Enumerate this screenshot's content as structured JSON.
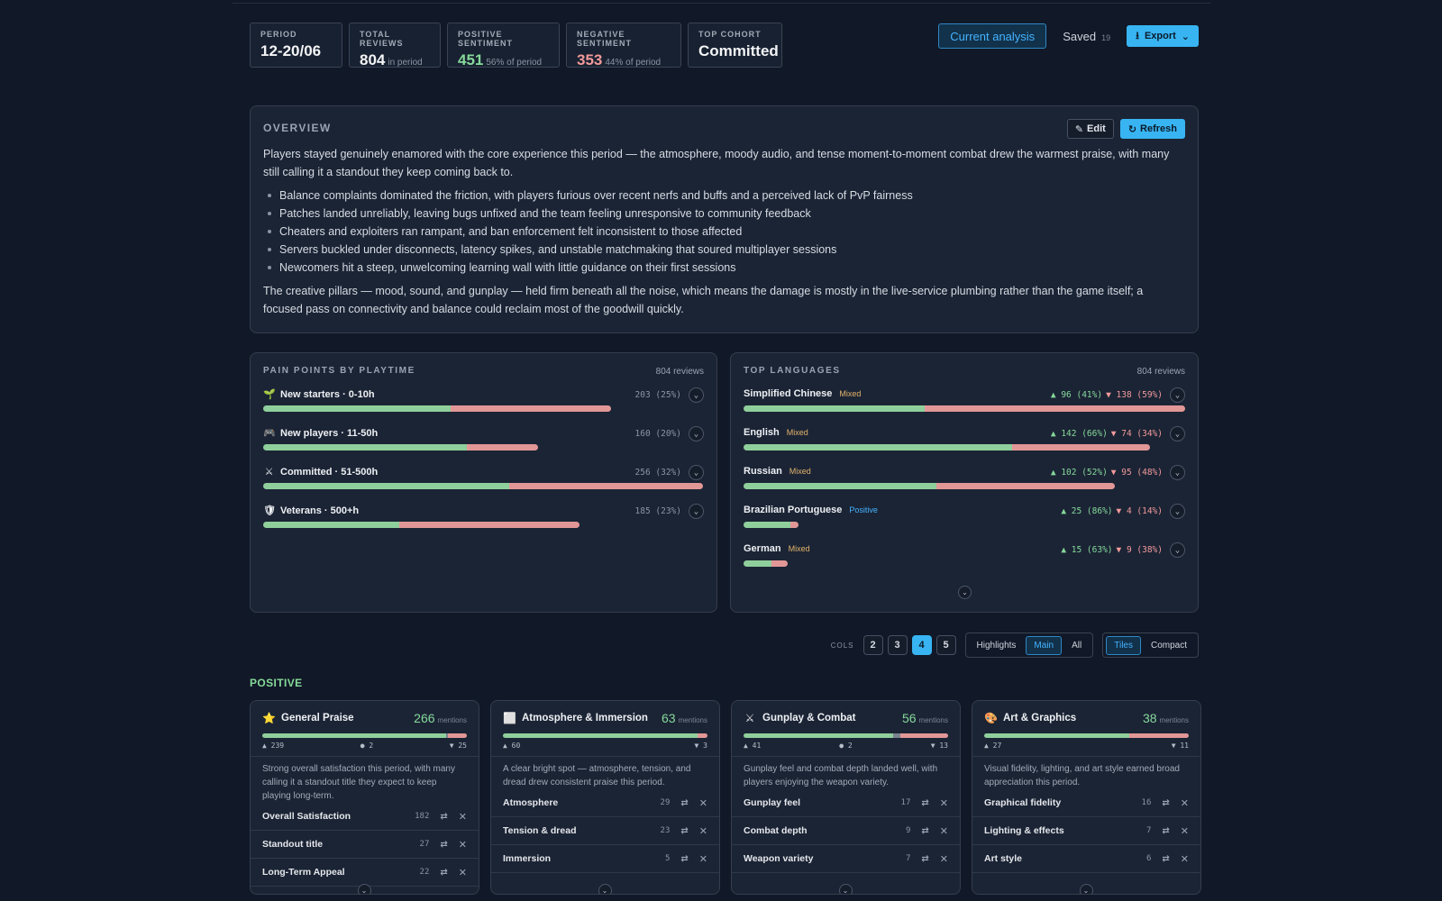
{
  "stats": [
    {
      "label": "PERIOD",
      "value": "12-20/06",
      "sub": "",
      "color": "#f3f4f6"
    },
    {
      "label": "TOTAL REVIEWS",
      "value": "804",
      "sub": "in period",
      "color": "#f3f4f6"
    },
    {
      "label": "POSITIVE SENTIMENT",
      "value": "451",
      "sub": "56% of period",
      "color": "#86d99a"
    },
    {
      "label": "NEGATIVE SENTIMENT",
      "value": "353",
      "sub": "44% of period",
      "color": "#f29a9a"
    },
    {
      "label": "TOP COHORT",
      "value": "Committed",
      "sub": "",
      "color": "#f3f4f6"
    }
  ],
  "header": {
    "current_analysis": "Current analysis",
    "saved_label": "Saved",
    "saved_count": "19",
    "export_label": "Export"
  },
  "overview": {
    "title": "OVERVIEW",
    "edit_label": "Edit",
    "refresh_label": "Refresh",
    "intro": "Players stayed genuinely enamored with the core experience this period — the atmosphere, moody audio, and tense moment-to-moment combat drew the warmest praise, with many still calling it a standout they keep coming back to.",
    "bullets": [
      "Balance complaints dominated the friction, with players furious over recent nerfs and buffs and a perceived lack of PvP fairness",
      "Patches landed unreliably, leaving bugs unfixed and the team feeling unresponsive to community feedback",
      "Cheaters and exploiters ran rampant, and ban enforcement felt inconsistent to those affected",
      "Servers buckled under disconnects, latency spikes, and unstable matchmaking that soured multiplayer sessions",
      "Newcomers hit a steep, unwelcoming learning wall with little guidance on their first sessions"
    ],
    "outro": "The creative pillars — mood, sound, and gunplay — held firm beneath all the noise, which means the damage is mostly in the live-service plumbing rather than the game itself; a focused pass on connectivity and balance could reclaim most of the goodwill quickly."
  },
  "pain": {
    "title": "PAIN POINTS BY PLAYTIME",
    "count": "804 reviews",
    "rows": [
      {
        "icon": "🌱",
        "label": "New starters · 0-10h",
        "stat": "203 (25%)",
        "pos": 0.54,
        "neg": 0.46,
        "scale": 0.79
      },
      {
        "icon": "🎮",
        "label": "New players · 11-50h",
        "stat": "160 (20%)",
        "pos": 0.74,
        "neg": 0.26,
        "scale": 0.625
      },
      {
        "icon": "⚔",
        "label": "Committed · 51-500h",
        "stat": "256 (32%)",
        "pos": 0.56,
        "neg": 0.44,
        "scale": 1.0
      },
      {
        "icon": "🛡",
        "label": "Veterans · 500+h",
        "stat": "185 (23%)",
        "pos": 0.43,
        "neg": 0.57,
        "scale": 0.72
      }
    ]
  },
  "languages": {
    "title": "TOP LANGUAGES",
    "count": "804 reviews",
    "rows": [
      {
        "label": "Simplified Chinese",
        "tag": "Mixed",
        "tagtype": "mixed",
        "pos": "▲ 96 (41%)",
        "neg": "▼ 138 (59%)",
        "pf": 0.41,
        "nf": 0.59,
        "scale": 1.0
      },
      {
        "label": "English",
        "tag": "Mixed",
        "tagtype": "mixed",
        "pos": "▲ 142 (66%)",
        "neg": "▼ 74 (34%)",
        "pf": 0.66,
        "nf": 0.34,
        "scale": 0.92
      },
      {
        "label": "Russian",
        "tag": "Mixed",
        "tagtype": "mixed",
        "pos": "▲ 102 (52%)",
        "neg": "▼ 95 (48%)",
        "pf": 0.52,
        "nf": 0.48,
        "scale": 0.84
      },
      {
        "label": "Brazilian Portuguese",
        "tag": "Positive",
        "tagtype": "pos",
        "pos": "▲ 25 (86%)",
        "neg": "▼ 4 (14%)",
        "pf": 0.86,
        "nf": 0.14,
        "scale": 0.124
      },
      {
        "label": "German",
        "tag": "Mixed",
        "tagtype": "mixed",
        "pos": "▲ 15 (63%)",
        "neg": "▼ 9 (38%)",
        "pf": 0.63,
        "nf": 0.37,
        "scale": 0.1
      }
    ]
  },
  "controls": {
    "cols_label": "COLS",
    "cols": [
      "2",
      "3",
      "4",
      "5"
    ],
    "cols_active": "4",
    "filters": [
      "Highlights",
      "Main",
      "All"
    ],
    "filter_active": "Main",
    "views": [
      "Tiles",
      "Compact"
    ],
    "view_active": "Tiles"
  },
  "section_label": "POSITIVE",
  "tiles": [
    {
      "icon": "⭐",
      "title": "General Praise",
      "count": "266",
      "mentions": "mentions",
      "pos": "▲ 239",
      "mid": "● 2",
      "neg": "▼ 25",
      "pf": 0.898,
      "mf": 0.008,
      "nf": 0.094,
      "desc": "Strong overall satisfaction this period, with many calling it a standout title they expect to keep playing long-term.",
      "items": [
        {
          "label": "Overall Satisfaction",
          "count": "182"
        },
        {
          "label": "Standout title",
          "count": "27"
        },
        {
          "label": "Long-Term Appeal",
          "count": "22"
        }
      ]
    },
    {
      "icon": "⬜",
      "title": "Atmosphere & Immersion",
      "count": "63",
      "mentions": "mentions",
      "pos": "▲ 60",
      "mid": "",
      "neg": "▼ 3",
      "pf": 0.952,
      "mf": 0,
      "nf": 0.048,
      "desc": "A clear bright spot — atmosphere, tension, and dread drew consistent praise this period.",
      "items": [
        {
          "label": "Atmosphere",
          "count": "29"
        },
        {
          "label": "Tension & dread",
          "count": "23"
        },
        {
          "label": "Immersion",
          "count": "5"
        }
      ]
    },
    {
      "icon": "⚔",
      "title": "Gunplay & Combat",
      "count": "56",
      "mentions": "mentions",
      "pos": "▲ 41",
      "mid": "● 2",
      "neg": "▼ 13",
      "pf": 0.732,
      "mf": 0.036,
      "nf": 0.232,
      "desc": "Gunplay feel and combat depth landed well, with players enjoying the weapon variety.",
      "items": [
        {
          "label": "Gunplay feel",
          "count": "17"
        },
        {
          "label": "Combat depth",
          "count": "9"
        },
        {
          "label": "Weapon variety",
          "count": "7"
        }
      ]
    },
    {
      "icon": "🎨",
      "title": "Art & Graphics",
      "count": "38",
      "mentions": "mentions",
      "pos": "▲ 27",
      "mid": "",
      "neg": "▼ 11",
      "pf": 0.71,
      "mf": 0,
      "nf": 0.29,
      "desc": "Visual fidelity, lighting, and art style earned broad appreciation this period.",
      "items": [
        {
          "label": "Graphical fidelity",
          "count": "16"
        },
        {
          "label": "Lighting & effects",
          "count": "7"
        },
        {
          "label": "Art style",
          "count": "6"
        }
      ]
    }
  ]
}
